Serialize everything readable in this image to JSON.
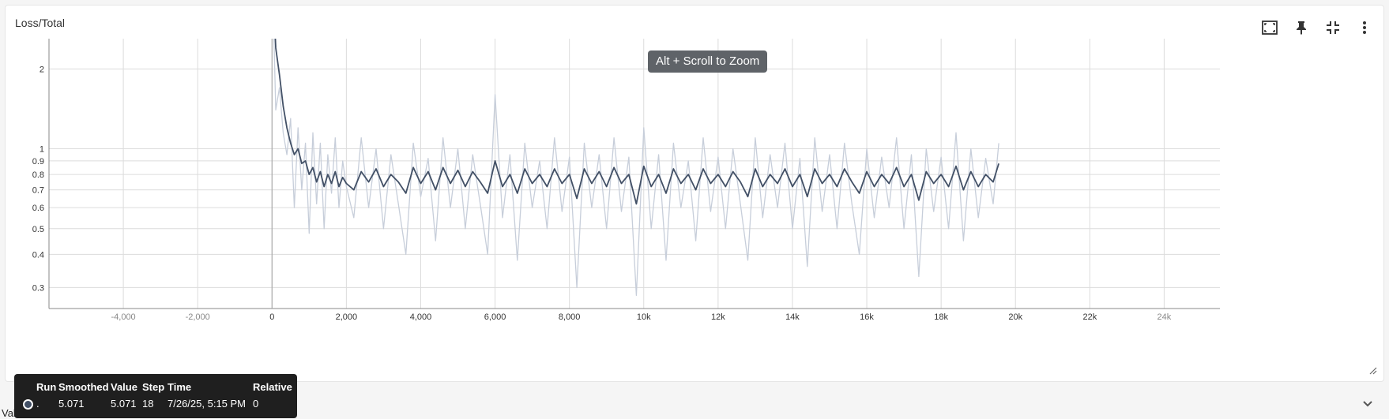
{
  "card": {
    "title": "Loss/Total",
    "zoom_hint": "Alt + Scroll to Zoom",
    "icons": [
      "fit-domain-icon",
      "pin-icon",
      "collapse-icon",
      "more-vert-icon"
    ]
  },
  "below": {
    "label": "Value Scale"
  },
  "tooltip": {
    "headers": {
      "run": "Run",
      "smoothed": "Smoothed",
      "value": "Value",
      "step": "Step",
      "time": "Time",
      "relative": "Relative"
    },
    "row": {
      "run": ".",
      "smoothed": "5.071",
      "value": "5.071",
      "step": "18",
      "time": "7/26/25, 5:15 PM",
      "relative": "0"
    }
  },
  "colors": {
    "smoothed": "#425066",
    "raw": "#c7ceda",
    "grid": "#dcdcdc",
    "tick": "#333333"
  },
  "chart_data": {
    "type": "line",
    "title": "Loss/Total",
    "xlabel": "",
    "ylabel": "",
    "xscale": "linear",
    "yscale": "log",
    "xlim": [
      -6000,
      25500
    ],
    "ylim": [
      0.25,
      2.6
    ],
    "x_ticks": [
      -4000,
      -2000,
      0,
      2000,
      4000,
      6000,
      8000,
      10000,
      12000,
      14000,
      16000,
      18000,
      20000,
      22000,
      24000
    ],
    "x_tick_labels": [
      "-4,000",
      "-2,000",
      "0",
      "2,000",
      "4,000",
      "6,000",
      "8,000",
      "10k",
      "12k",
      "14k",
      "16k",
      "18k",
      "20k",
      "22k",
      "24k"
    ],
    "y_ticks": [
      0.3,
      0.4,
      0.5,
      0.6,
      0.7,
      0.8,
      0.9,
      1,
      2
    ],
    "y_tick_labels": [
      "0.3",
      "0.4",
      "0.5",
      "0.6",
      "0.7",
      "0.8",
      "0.9",
      "1",
      "2"
    ],
    "grid": true,
    "legend": "none",
    "series": [
      {
        "role": "raw",
        "x": [
          0,
          100,
          200,
          300,
          400,
          500,
          600,
          700,
          800,
          900,
          1000,
          1100,
          1200,
          1300,
          1400,
          1500,
          1600,
          1700,
          1800,
          1900,
          2000,
          2200,
          2400,
          2600,
          2800,
          3000,
          3200,
          3400,
          3600,
          3800,
          4000,
          4200,
          4400,
          4600,
          4800,
          5000,
          5200,
          5400,
          5600,
          5800,
          6000,
          6200,
          6400,
          6600,
          6800,
          7000,
          7200,
          7400,
          7600,
          7800,
          8000,
          8200,
          8400,
          8600,
          8800,
          9000,
          9200,
          9400,
          9600,
          9800,
          10000,
          10200,
          10400,
          10600,
          10800,
          11000,
          11200,
          11400,
          11600,
          11800,
          12000,
          12200,
          12400,
          12600,
          12800,
          13000,
          13200,
          13400,
          13600,
          13800,
          14000,
          14200,
          14400,
          14600,
          14800,
          15000,
          15200,
          15400,
          15600,
          15800,
          16000,
          16200,
          16400,
          16600,
          16800,
          17000,
          17200,
          17400,
          17600,
          17800,
          18000,
          18200,
          18400,
          18600,
          18800,
          19000,
          19200,
          19400,
          19550
        ],
        "y": [
          5.07,
          1.4,
          1.7,
          1.15,
          0.95,
          1.3,
          0.6,
          1.2,
          0.7,
          1.05,
          0.48,
          1.15,
          0.62,
          1.05,
          0.5,
          0.95,
          0.68,
          1.1,
          0.6,
          0.9,
          0.72,
          0.55,
          1.1,
          0.6,
          1.0,
          0.5,
          0.95,
          0.62,
          0.4,
          1.05,
          0.66,
          0.92,
          0.45,
          1.1,
          0.6,
          1.0,
          0.5,
          0.95,
          0.62,
          0.4,
          1.6,
          0.55,
          0.95,
          0.38,
          1.05,
          0.6,
          0.9,
          0.5,
          1.1,
          0.58,
          0.93,
          0.3,
          1.05,
          0.6,
          0.95,
          0.5,
          1.1,
          0.58,
          0.93,
          0.28,
          1.2,
          0.5,
          0.95,
          0.38,
          1.05,
          0.6,
          0.9,
          0.45,
          1.1,
          0.58,
          0.93,
          0.5,
          1.0,
          0.62,
          0.38,
          1.1,
          0.55,
          0.95,
          0.6,
          1.05,
          0.5,
          0.92,
          0.36,
          1.1,
          0.58,
          0.95,
          0.5,
          1.05,
          0.62,
          0.4,
          1.0,
          0.55,
          0.93,
          0.6,
          1.1,
          0.5,
          0.95,
          0.33,
          1.0,
          0.58,
          0.93,
          0.5,
          1.15,
          0.45,
          1.0,
          0.55,
          0.92,
          0.62,
          1.05
        ],
        "color": "#c7ceda"
      },
      {
        "role": "smoothed",
        "x": [
          0,
          100,
          200,
          300,
          400,
          500,
          600,
          700,
          800,
          900,
          1000,
          1100,
          1200,
          1300,
          1400,
          1500,
          1600,
          1700,
          1800,
          1900,
          2000,
          2200,
          2400,
          2600,
          2800,
          3000,
          3200,
          3400,
          3600,
          3800,
          4000,
          4200,
          4400,
          4600,
          4800,
          5000,
          5200,
          5400,
          5600,
          5800,
          6000,
          6200,
          6400,
          6600,
          6800,
          7000,
          7200,
          7400,
          7600,
          7800,
          8000,
          8200,
          8400,
          8600,
          8800,
          9000,
          9200,
          9400,
          9600,
          9800,
          10000,
          10200,
          10400,
          10600,
          10800,
          11000,
          11200,
          11400,
          11600,
          11800,
          12000,
          12200,
          12400,
          12600,
          12800,
          13000,
          13200,
          13400,
          13600,
          13800,
          14000,
          14200,
          14400,
          14600,
          14800,
          15000,
          15200,
          15400,
          15600,
          15800,
          16000,
          16200,
          16400,
          16600,
          16800,
          17000,
          17200,
          17400,
          17600,
          17800,
          18000,
          18200,
          18400,
          18600,
          18800,
          19000,
          19200,
          19400,
          19550
        ],
        "y": [
          5.07,
          2.4,
          1.9,
          1.45,
          1.2,
          1.05,
          0.95,
          1.0,
          0.88,
          0.9,
          0.8,
          0.85,
          0.75,
          0.82,
          0.72,
          0.8,
          0.74,
          0.82,
          0.72,
          0.78,
          0.74,
          0.7,
          0.82,
          0.75,
          0.84,
          0.72,
          0.8,
          0.75,
          0.68,
          0.85,
          0.74,
          0.82,
          0.7,
          0.85,
          0.74,
          0.83,
          0.72,
          0.82,
          0.75,
          0.68,
          0.9,
          0.72,
          0.8,
          0.68,
          0.84,
          0.74,
          0.8,
          0.72,
          0.84,
          0.74,
          0.8,
          0.65,
          0.84,
          0.74,
          0.82,
          0.72,
          0.85,
          0.74,
          0.8,
          0.62,
          0.86,
          0.72,
          0.8,
          0.68,
          0.84,
          0.74,
          0.8,
          0.7,
          0.84,
          0.74,
          0.8,
          0.72,
          0.82,
          0.75,
          0.66,
          0.84,
          0.72,
          0.8,
          0.74,
          0.84,
          0.72,
          0.8,
          0.66,
          0.84,
          0.74,
          0.8,
          0.72,
          0.84,
          0.75,
          0.68,
          0.82,
          0.72,
          0.8,
          0.74,
          0.85,
          0.72,
          0.8,
          0.64,
          0.82,
          0.74,
          0.8,
          0.72,
          0.86,
          0.7,
          0.82,
          0.72,
          0.8,
          0.75,
          0.88
        ],
        "color": "#425066"
      }
    ]
  }
}
